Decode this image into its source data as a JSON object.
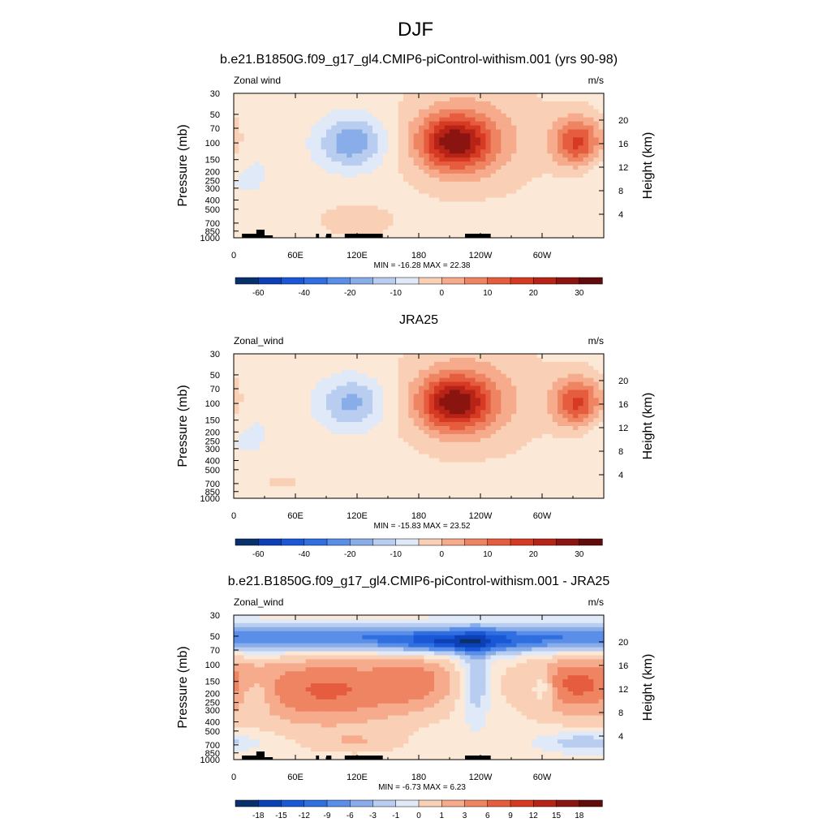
{
  "figure": {
    "title": "DJF"
  },
  "colors": {
    "diverging": [
      "#08306b",
      "#0d3fb5",
      "#1a57d6",
      "#2f6fe0",
      "#5b8ee8",
      "#89ade8",
      "#b8cdf0",
      "#dfe9f8",
      "#fbe8d6",
      "#f9cfb5",
      "#f5ab8c",
      "#ef8462",
      "#e65c3e",
      "#d63a22",
      "#b72316",
      "#8a1410",
      "#600c0a"
    ],
    "terrain": "#000000"
  },
  "chart_data": [
    {
      "type": "heatmap",
      "title": "b.e21.B1850G.f09_g17_gl4.CMIP6-piControl-withism.001 (yrs 90-98)",
      "left_label": "Zonal wind",
      "right_label": "m/s",
      "ylabel": "Pressure (mb)",
      "ylabel_right": "Height (km)",
      "x_ticks": [
        "0",
        "60E",
        "120E",
        "180",
        "120W",
        "60W"
      ],
      "x_tick_values": [
        0,
        60,
        120,
        180,
        240,
        300
      ],
      "x_range": [
        0,
        360
      ],
      "y_ticks": [
        "30",
        "50",
        "70",
        "100",
        "150",
        "200",
        "250",
        "300",
        "400",
        "500",
        "700",
        "850",
        "1000"
      ],
      "y_range_mb": [
        30,
        1000
      ],
      "y_right_ticks": [
        "20",
        "16",
        "12",
        "8",
        "4"
      ],
      "stats": "MIN = -16.28  MAX = 22.38",
      "min": -16.28,
      "max": 22.38,
      "colorbar_labels": [
        "-60",
        "-40",
        "-20",
        "-10",
        "0",
        "10",
        "20",
        "30"
      ],
      "has_terrain": true
    },
    {
      "type": "heatmap",
      "title": "JRA25",
      "left_label": "Zonal_wind",
      "right_label": "m/s",
      "ylabel": "Pressure (mb)",
      "ylabel_right": "Height (km)",
      "x_ticks": [
        "0",
        "60E",
        "120E",
        "180",
        "120W",
        "60W"
      ],
      "x_tick_values": [
        0,
        60,
        120,
        180,
        240,
        300
      ],
      "x_range": [
        0,
        360
      ],
      "y_ticks": [
        "30",
        "50",
        "70",
        "100",
        "150",
        "200",
        "250",
        "300",
        "400",
        "500",
        "700",
        "850",
        "1000"
      ],
      "y_range_mb": [
        30,
        1000
      ],
      "y_right_ticks": [
        "20",
        "16",
        "12",
        "8",
        "4"
      ],
      "stats": "MIN = -15.83  MAX = 23.52",
      "min": -15.83,
      "max": 23.52,
      "colorbar_labels": [
        "-60",
        "-40",
        "-20",
        "-10",
        "0",
        "10",
        "20",
        "30"
      ],
      "has_terrain": false
    },
    {
      "type": "heatmap",
      "title": "b.e21.B1850G.f09_g17_gl4.CMIP6-piControl-withism.001 - JRA25",
      "left_label": "Zonal_wind",
      "right_label": "m/s",
      "ylabel": "Pressure (mb)",
      "ylabel_right": "Height (km)",
      "x_ticks": [
        "0",
        "60E",
        "120E",
        "180",
        "120W",
        "60W"
      ],
      "x_tick_values": [
        0,
        60,
        120,
        180,
        240,
        300
      ],
      "x_range": [
        0,
        360
      ],
      "y_ticks": [
        "30",
        "50",
        "70",
        "100",
        "150",
        "200",
        "250",
        "300",
        "400",
        "500",
        "700",
        "850",
        "1000"
      ],
      "y_range_mb": [
        30,
        1000
      ],
      "y_right_ticks": [
        "20",
        "16",
        "12",
        "8",
        "4"
      ],
      "stats": "MIN = -6.73  MAX =  6.23",
      "min": -6.73,
      "max": 6.23,
      "colorbar_labels": [
        "-18",
        "-15",
        "-12",
        "-9",
        "-6",
        "-3",
        "-1",
        "0",
        "1",
        "3",
        "6",
        "9",
        "12",
        "15",
        "18"
      ],
      "has_terrain": true
    }
  ]
}
